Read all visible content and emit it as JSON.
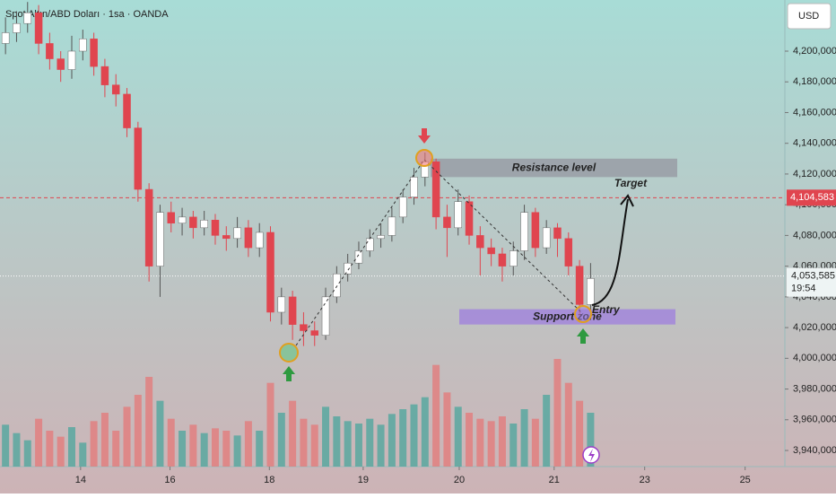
{
  "chart_data": {
    "type": "candlestick",
    "title": "Spot Altın/ABD Doları · 1sa · OANDA",
    "currency": "USD",
    "open": [
      4205000,
      4212000,
      4218000,
      4225000,
      4205000,
      4195000,
      4188000,
      4200000,
      4208000,
      4190000,
      4178000,
      4172000,
      4150000,
      4110000,
      4060000,
      4095000,
      4088000,
      4092000,
      4085000,
      4090000,
      4080000,
      4078000,
      4085000,
      4072000,
      4082000,
      4030000,
      4040000,
      4022000,
      4018000,
      4015000,
      4040000,
      4055000,
      4062000,
      4070000,
      4078000,
      4080000,
      4092000,
      4105000,
      4118000,
      4128000,
      4092000,
      4085000,
      4102000,
      4080000,
      4072000,
      4068000,
      4060000,
      4070000,
      4095000,
      4072000,
      4085000,
      4078000,
      4060000,
      4035000
    ],
    "high": [
      4222000,
      4226000,
      4232000,
      4230000,
      4212000,
      4200000,
      4210000,
      4214000,
      4212000,
      4195000,
      4185000,
      4176000,
      4154000,
      4114000,
      4100000,
      4102000,
      4098000,
      4096000,
      4096000,
      4094000,
      4086000,
      4092000,
      4090000,
      4088000,
      4086000,
      4046000,
      4044000,
      4030000,
      4024000,
      4046000,
      4060000,
      4068000,
      4076000,
      4084000,
      4088000,
      4098000,
      4110000,
      4124000,
      4134000,
      4130000,
      4100000,
      4110000,
      4106000,
      4086000,
      4078000,
      4072000,
      4076000,
      4100000,
      4098000,
      4090000,
      4088000,
      4082000,
      4064000,
      4062000
    ],
    "low": [
      4198000,
      4206000,
      4212000,
      4198000,
      4188000,
      4180000,
      4182000,
      4194000,
      4184000,
      4170000,
      4164000,
      4144000,
      4102000,
      4050000,
      4040000,
      4082000,
      4080000,
      4078000,
      4080000,
      4074000,
      4070000,
      4072000,
      4066000,
      4066000,
      4024000,
      4022000,
      4012000,
      4008000,
      4008000,
      4012000,
      4036000,
      4050000,
      4058000,
      4066000,
      4072000,
      4076000,
      4088000,
      4100000,
      4112000,
      4084000,
      4066000,
      4080000,
      4074000,
      4054000,
      4060000,
      4050000,
      4054000,
      4064000,
      4066000,
      4068000,
      4066000,
      4054000,
      4028000,
      4030000
    ],
    "close": [
      4212000,
      4218000,
      4225000,
      4205000,
      4195000,
      4188000,
      4200000,
      4208000,
      4190000,
      4178000,
      4172000,
      4150000,
      4110000,
      4060000,
      4095000,
      4088000,
      4092000,
      4085000,
      4090000,
      4080000,
      4078000,
      4085000,
      4072000,
      4082000,
      4030000,
      4040000,
      4022000,
      4018000,
      4015000,
      4040000,
      4055000,
      4062000,
      4070000,
      4078000,
      4080000,
      4092000,
      4105000,
      4118000,
      4128000,
      4092000,
      4085000,
      4102000,
      4080000,
      4072000,
      4068000,
      4060000,
      4070000,
      4095000,
      4072000,
      4085000,
      4078000,
      4060000,
      4035000,
      4052000
    ],
    "volume": [
      35,
      28,
      22,
      40,
      30,
      25,
      33,
      20,
      38,
      45,
      30,
      50,
      60,
      75,
      55,
      40,
      30,
      35,
      28,
      32,
      30,
      26,
      38,
      30,
      70,
      45,
      55,
      40,
      35,
      50,
      42,
      38,
      36,
      40,
      35,
      44,
      48,
      52,
      58,
      85,
      62,
      50,
      45,
      40,
      38,
      42,
      36,
      48,
      40,
      60,
      90,
      70,
      55,
      45
    ],
    "xlim": [
      -0.5,
      70.6
    ],
    "xticks": [
      {
        "value": 6.8,
        "label": "14"
      },
      {
        "value": 14.9,
        "label": "16"
      },
      {
        "value": 23.9,
        "label": "18"
      },
      {
        "value": 32.4,
        "label": "19"
      },
      {
        "value": 41.1,
        "label": "20"
      },
      {
        "value": 49.7,
        "label": "21"
      },
      {
        "value": 57.9,
        "label": "23"
      },
      {
        "value": 67.0,
        "label": "25"
      }
    ],
    "ylim": [
      3929500,
      4233300
    ],
    "yticks": [
      {
        "value": 3940000,
        "label": "3,940,000"
      },
      {
        "value": 3960000,
        "label": "3,960,000"
      },
      {
        "value": 3980000,
        "label": "3,980,000"
      },
      {
        "value": 4000000,
        "label": "4,000,000"
      },
      {
        "value": 4020000,
        "label": "4,020,000"
      },
      {
        "value": 4040000,
        "label": "4,040,000"
      },
      {
        "value": 4060000,
        "label": "4,060,000"
      },
      {
        "value": 4080000,
        "label": "4,080,000"
      },
      {
        "value": 4100000,
        "label": "4,100,000"
      },
      {
        "value": 4120000,
        "label": "4,120,000"
      },
      {
        "value": 4140000,
        "label": "4,140,000"
      },
      {
        "value": 4160000,
        "label": "4,160,000"
      },
      {
        "value": 4180000,
        "label": "4,180,000"
      },
      {
        "value": 4200000,
        "label": "4,200,000"
      }
    ],
    "resistance_line": {
      "value": 4104583,
      "label": "4,104,583"
    },
    "last_price": {
      "value": 4053585,
      "label": "4,053,585",
      "countdown": "19:54"
    },
    "resistance_zone": {
      "label": "Resistance level",
      "range": [
        4118000,
        4130000
      ]
    },
    "support_zone": {
      "label": "Support zone",
      "range": [
        4022000,
        4032000
      ]
    },
    "annotations": {
      "entry": "Entry",
      "target": "Target"
    },
    "up_color": "#ffffff",
    "down_color": "#e0454f",
    "vol_up_color": "#4aa59c",
    "vol_down_color": "#e47878"
  }
}
